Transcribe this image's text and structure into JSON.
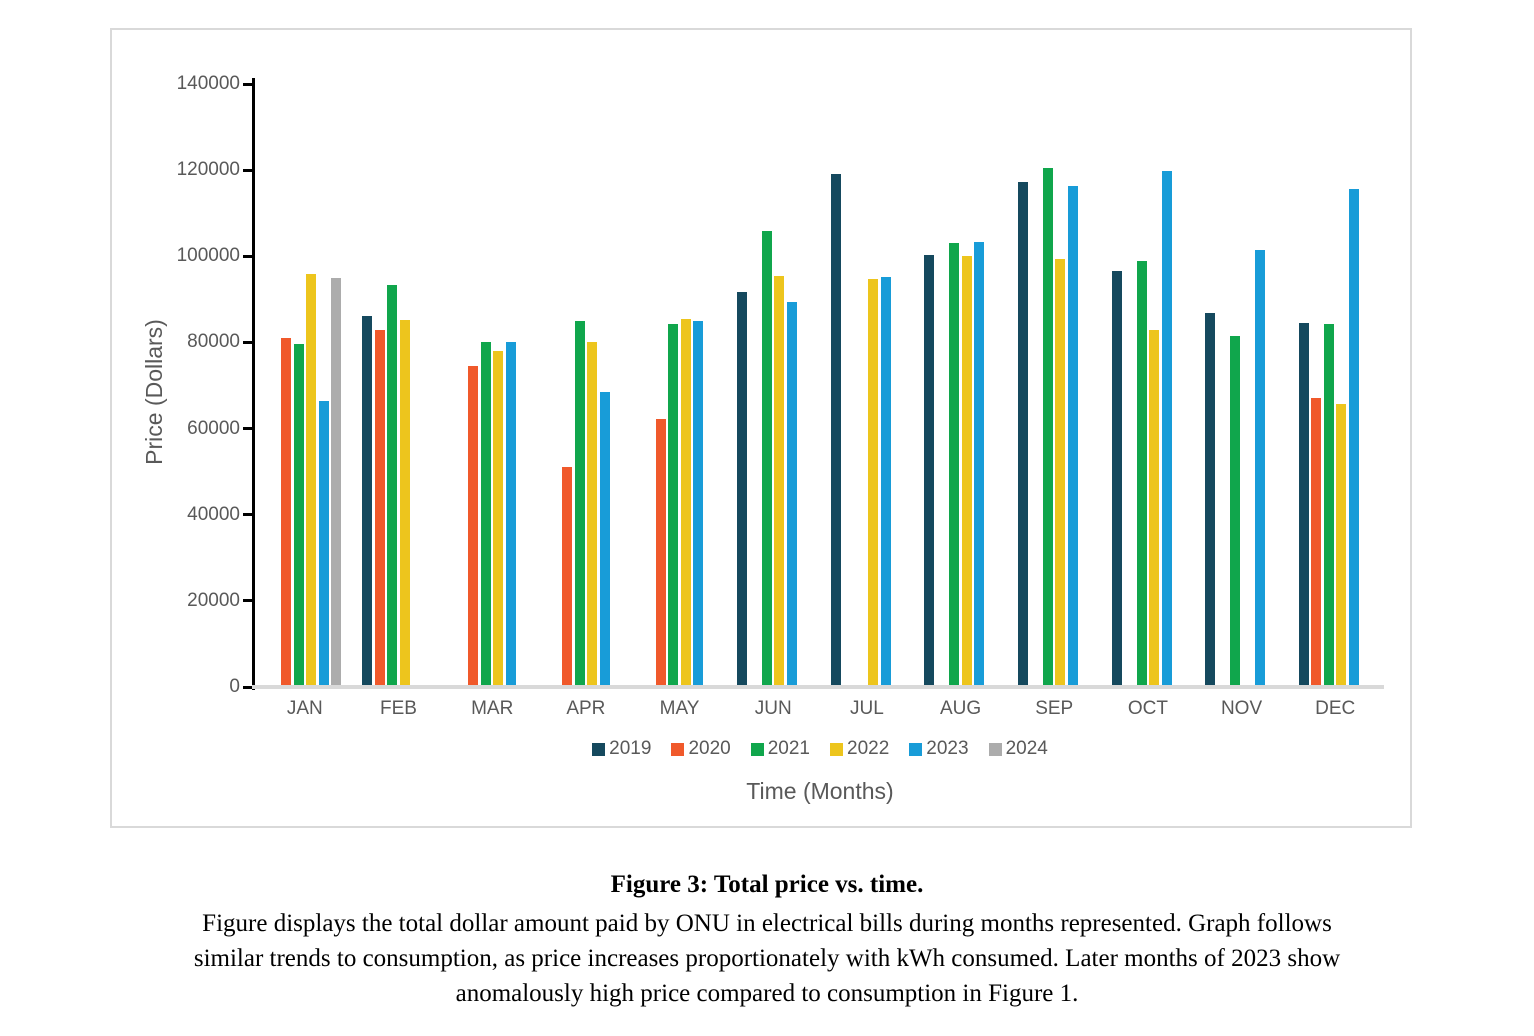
{
  "figure": {
    "caption_title": "Figure 3: Total price vs. time.",
    "caption_lines": [
      "Figure displays the total dollar amount paid by ONU in electrical bills during months represented. Graph follows",
      "similar trends to consumption, as price increases proportionately with kWh consumed. Later months of 2023 show",
      "anomalously high price compared to consumption in Figure 1."
    ]
  },
  "chart_data": {
    "type": "bar",
    "title": "",
    "xlabel": "Time (Months)",
    "ylabel": "Price (Dollars)",
    "ylim": [
      0,
      140000
    ],
    "yticks": [
      0,
      20000,
      40000,
      60000,
      80000,
      100000,
      120000,
      140000
    ],
    "grid": false,
    "legend_position": "bottom",
    "categories": [
      "JAN",
      "FEB",
      "MAR",
      "APR",
      "MAY",
      "JUN",
      "JUL",
      "AUG",
      "SEP",
      "OCT",
      "NOV",
      "DEC"
    ],
    "series": [
      {
        "name": "2019",
        "color": "#15495E",
        "values": [
          null,
          86100,
          null,
          null,
          null,
          91700,
          119100,
          100400,
          117300,
          96600,
          86900,
          84600
        ]
      },
      {
        "name": "2020",
        "color": "#F0592B",
        "values": [
          81000,
          83000,
          74600,
          51000,
          62300,
          null,
          null,
          null,
          null,
          null,
          null,
          67000
        ]
      },
      {
        "name": "2021",
        "color": "#10A64C",
        "values": [
          79600,
          93400,
          80200,
          85000,
          84400,
          105900,
          null,
          103200,
          120600,
          99000,
          81400,
          84400
        ]
      },
      {
        "name": "2022",
        "color": "#EDC51D",
        "values": [
          95800,
          85300,
          78100,
          80000,
          85500,
          95400,
          94800,
          100100,
          99300,
          82800,
          null,
          65800
        ]
      },
      {
        "name": "2023",
        "color": "#189CD8",
        "values": [
          66400,
          null,
          80200,
          68500,
          85000,
          89500,
          95200,
          103400,
          116400,
          119800,
          101500,
          115600
        ]
      },
      {
        "name": "2024",
        "color": "#ACACAC",
        "values": [
          94900,
          null,
          null,
          null,
          null,
          null,
          null,
          null,
          null,
          null,
          null,
          null
        ]
      }
    ],
    "axis_color": "#000000",
    "baseline_color": "#d9d9d9",
    "label_color": "#595959"
  }
}
